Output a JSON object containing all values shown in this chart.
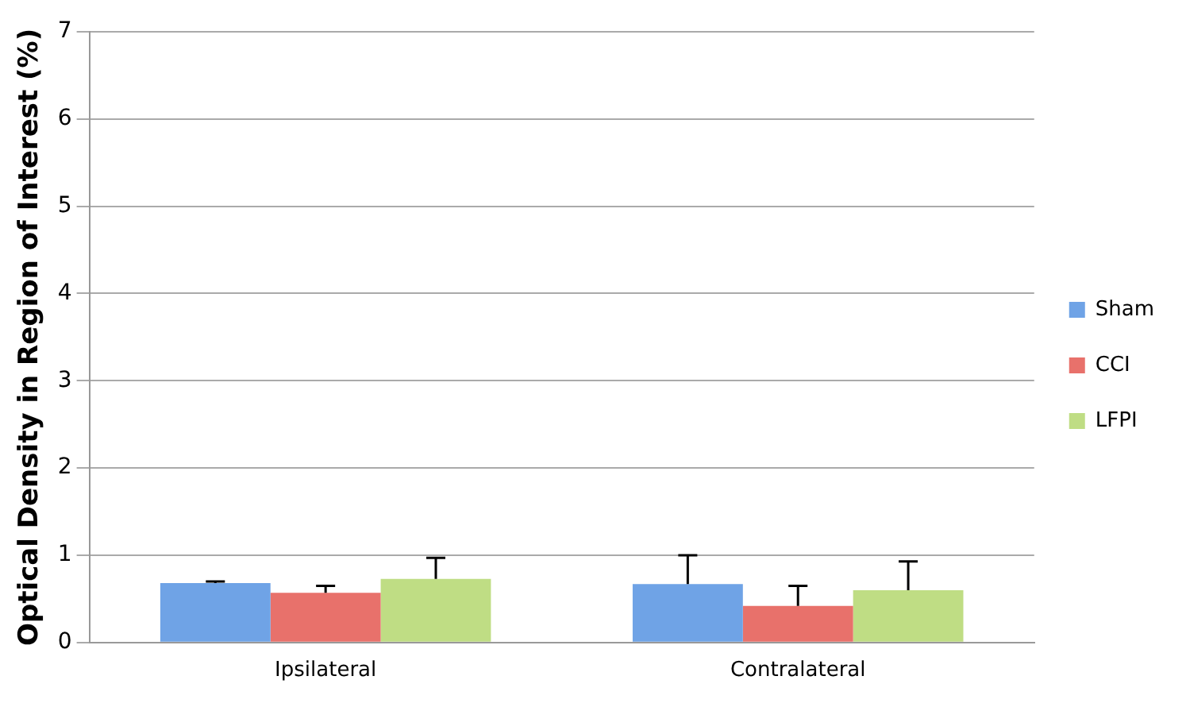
{
  "chart_data": {
    "type": "bar",
    "ylabel": "Optical Density in Region of Interest (%)",
    "categories": [
      "Ipsilateral",
      "Contralateral"
    ],
    "series": [
      {
        "name": "Sham",
        "color": "#6fa3e6",
        "values": [
          0.68,
          0.67
        ],
        "errors": [
          [
            0.68,
            0.7
          ],
          [
            0.67,
            1.0
          ]
        ]
      },
      {
        "name": "CCI",
        "color": "#e8716b",
        "values": [
          0.57,
          0.42
        ],
        "errors": [
          [
            0.57,
            0.65
          ],
          [
            0.42,
            0.65
          ]
        ]
      },
      {
        "name": "LFPI",
        "color": "#bfdd84",
        "values": [
          0.73,
          0.6
        ],
        "errors": [
          [
            0.73,
            0.97
          ],
          [
            0.6,
            0.93
          ]
        ]
      }
    ],
    "ylim": [
      0,
      7
    ],
    "yticks": [
      0,
      1,
      2,
      3,
      4,
      5,
      6,
      7
    ],
    "grid": "y",
    "legend": "right"
  }
}
